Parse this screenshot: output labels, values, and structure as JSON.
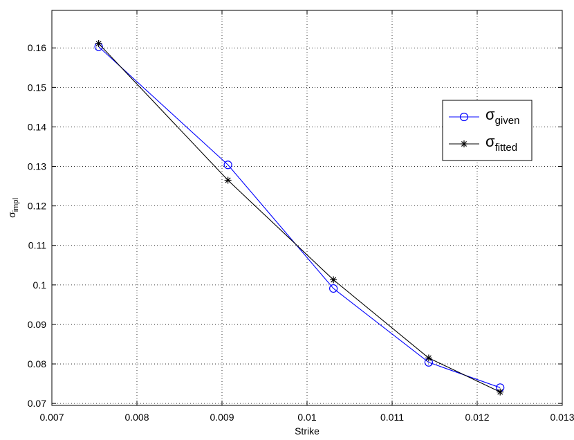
{
  "chart_data": {
    "type": "line",
    "xlabel": "Strike",
    "ylabel": {
      "base": "σ",
      "sub": "impl"
    },
    "xlim": [
      0.007,
      0.013
    ],
    "ylim": [
      0.0695,
      0.1695
    ],
    "xticks": [
      0.007,
      0.008,
      0.009,
      0.01,
      0.011,
      0.012,
      0.013
    ],
    "xtick_labels": [
      "0.007",
      "0.008",
      "0.009",
      "0.01",
      "0.011",
      "0.012",
      "0.013"
    ],
    "yticks": [
      0.07,
      0.08,
      0.09,
      0.1,
      0.11,
      0.12,
      0.13,
      0.14,
      0.15,
      0.16
    ],
    "ytick_labels": [
      "0.07",
      "0.08",
      "0.09",
      "0.1",
      "0.11",
      "0.12",
      "0.13",
      "0.14",
      "0.15",
      "0.16"
    ],
    "grid": true,
    "legend_position": "right",
    "series": [
      {
        "name": "σgiven",
        "name_base": "σ",
        "name_sub": "given",
        "color": "#0000ff",
        "marker": "circle",
        "x": [
          0.00755,
          0.00907,
          0.01031,
          0.01143,
          0.01227
        ],
        "y": [
          0.1603,
          0.1304,
          0.0991,
          0.0804,
          0.074
        ]
      },
      {
        "name": "σfitted",
        "name_base": "σ",
        "name_sub": "fitted",
        "color": "#000000",
        "marker": "star",
        "x": [
          0.00755,
          0.00907,
          0.01031,
          0.01143,
          0.01227
        ],
        "y": [
          0.1611,
          0.1265,
          0.1013,
          0.0815,
          0.0729
        ]
      }
    ]
  }
}
